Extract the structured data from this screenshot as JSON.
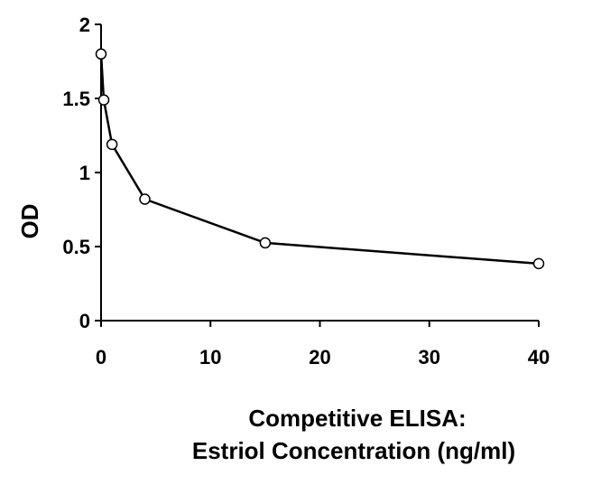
{
  "chart_data": {
    "type": "line",
    "title": "",
    "xlabel_lines": [
      "Competitive ELISA:",
      "Estriol Concentration (ng/ml)"
    ],
    "ylabel": "OD",
    "xlim": [
      0,
      40
    ],
    "ylim": [
      0,
      2
    ],
    "xticks": [
      0,
      10,
      20,
      30,
      40
    ],
    "yticks": [
      0,
      0.5,
      1,
      1.5,
      2
    ],
    "grid": false,
    "legend": "none",
    "series": [
      {
        "x": [
          0,
          0.25,
          1,
          4,
          15,
          40
        ],
        "y": [
          1.8,
          1.49,
          1.19,
          0.82,
          0.525,
          0.385
        ]
      }
    ],
    "line_color": "#000000",
    "marker_fill": "#ffffff"
  }
}
